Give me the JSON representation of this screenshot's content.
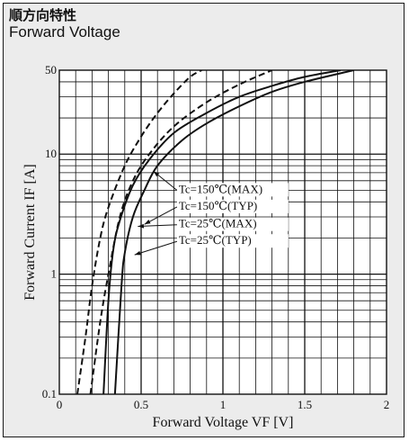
{
  "header": {
    "title_jp": "順方向特性",
    "title_en": "Forward Voltage"
  },
  "chart_data": {
    "type": "line",
    "title": "Forward Voltage",
    "xlabel": "Forward Voltage VF [V]",
    "ylabel": "Forward Current IF [A]",
    "xlim": [
      0,
      2
    ],
    "ylim": [
      0.1,
      50
    ],
    "yscale": "log",
    "grid": true,
    "x_ticks": [
      "0",
      "0.5",
      "1",
      "1.5",
      "2"
    ],
    "y_ticks": [
      "0.1",
      "1",
      "10",
      "50"
    ],
    "colors": {
      "line": "#111111",
      "grid": "#111111",
      "background": "#ececec"
    },
    "series": [
      {
        "name": "Tc=150℃(MAX)",
        "dash": true,
        "points": [
          [
            0.11,
            0.1
          ],
          [
            0.16,
            0.3
          ],
          [
            0.2,
            0.8
          ],
          [
            0.25,
            2
          ],
          [
            0.3,
            3.6
          ],
          [
            0.4,
            8
          ],
          [
            0.5,
            14
          ],
          [
            0.6,
            22
          ],
          [
            0.7,
            32
          ],
          [
            0.8,
            44
          ],
          [
            0.87,
            50
          ]
        ]
      },
      {
        "name": "Tc=150℃(TYP)",
        "dash": true,
        "points": [
          [
            0.19,
            0.1
          ],
          [
            0.25,
            0.4
          ],
          [
            0.3,
            1.0
          ],
          [
            0.37,
            3
          ],
          [
            0.45,
            6
          ],
          [
            0.55,
            10
          ],
          [
            0.7,
            17
          ],
          [
            0.9,
            27
          ],
          [
            1.1,
            38
          ],
          [
            1.3,
            50
          ]
        ]
      },
      {
        "name": "Tc=25℃(MAX)",
        "dash": false,
        "points": [
          [
            0.27,
            0.1
          ],
          [
            0.3,
            0.6
          ],
          [
            0.33,
            1.6
          ],
          [
            0.37,
            2.8
          ],
          [
            0.45,
            5.5
          ],
          [
            0.55,
            9
          ],
          [
            0.7,
            15
          ],
          [
            0.9,
            22
          ],
          [
            1.1,
            30
          ],
          [
            1.3,
            37
          ],
          [
            1.5,
            44
          ],
          [
            1.72,
            50
          ]
        ]
      },
      {
        "name": "Tc=25℃(TYP)",
        "dash": false,
        "points": [
          [
            0.34,
            0.1
          ],
          [
            0.38,
            0.8
          ],
          [
            0.4,
            1.5
          ],
          [
            0.45,
            3
          ],
          [
            0.52,
            5
          ],
          [
            0.6,
            8
          ],
          [
            0.75,
            13
          ],
          [
            0.9,
            18
          ],
          [
            1.1,
            25
          ],
          [
            1.3,
            33
          ],
          [
            1.5,
            40
          ],
          [
            1.8,
            50
          ]
        ]
      }
    ],
    "annotations": [
      {
        "text": "Tc=150℃(MAX)",
        "x": 0.73,
        "y": 4.75
      },
      {
        "text": "Tc=150℃(TYP)",
        "x": 0.73,
        "y": 3.45
      },
      {
        "text": "Tc=25℃(MAX)",
        "x": 0.73,
        "y": 2.45
      },
      {
        "text": "Tc=25℃(TYP)",
        "x": 0.73,
        "y": 1.78
      }
    ]
  }
}
